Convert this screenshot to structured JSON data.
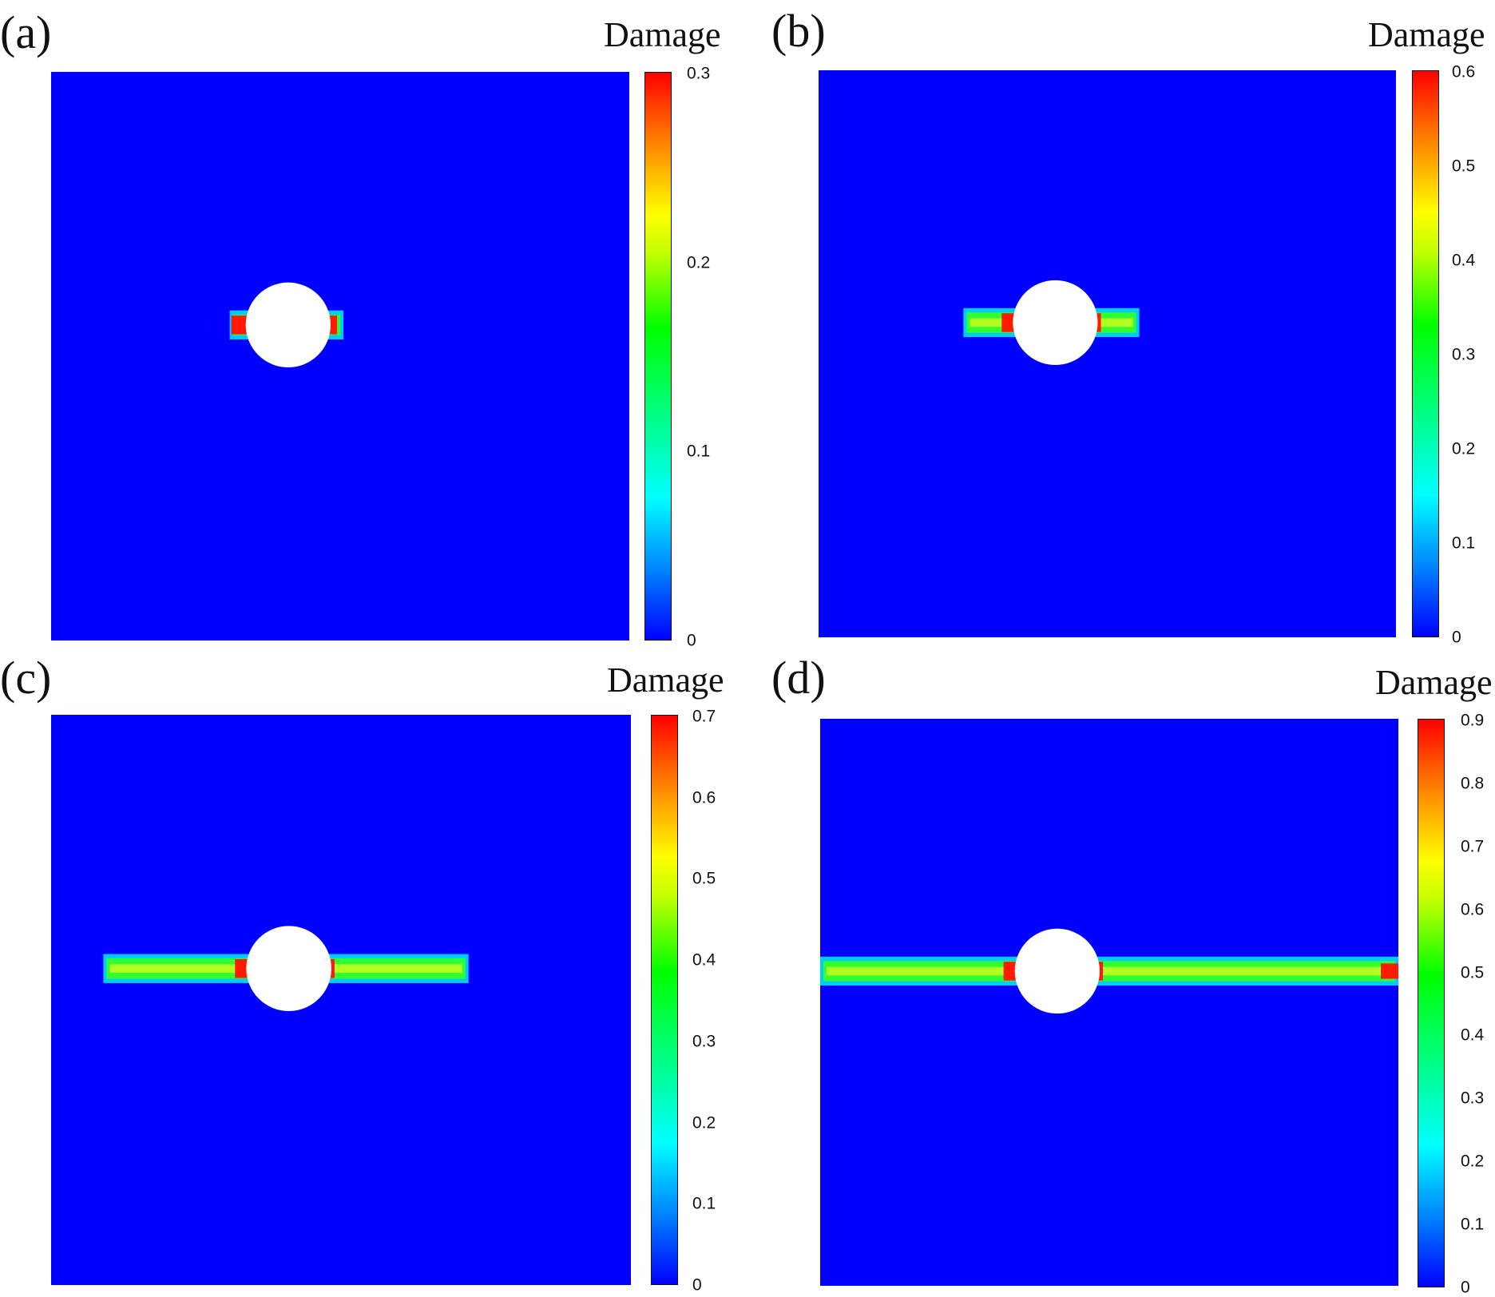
{
  "chart_data": [
    {
      "type": "heatmap",
      "panel_label": "(a)",
      "colorbar_title": "Damage",
      "colorbar_range": [
        0,
        0.3
      ],
      "colorbar_ticks": [
        "0",
        "0.1",
        "0.2",
        "0.3"
      ],
      "colormap": [
        "#0000ff",
        "#00ffff",
        "#00ff00",
        "#ffff00",
        "#ff0000"
      ],
      "crack_extent": "short",
      "max_damage_at_tips": 0.3
    },
    {
      "type": "heatmap",
      "panel_label": "(b)",
      "colorbar_title": "Damage",
      "colorbar_range": [
        0,
        0.6
      ],
      "colorbar_ticks": [
        "0",
        "0.1",
        "0.2",
        "0.3",
        "0.4",
        "0.5",
        "0.6"
      ],
      "colormap": [
        "#0000ff",
        "#00ffff",
        "#00ff00",
        "#ffff00",
        "#ff0000"
      ],
      "crack_extent": "medium",
      "max_damage_at_tips": 0.6
    },
    {
      "type": "heatmap",
      "panel_label": "(c)",
      "colorbar_title": "Damage",
      "colorbar_range": [
        0,
        0.7
      ],
      "colorbar_ticks": [
        "0",
        "0.1",
        "0.2",
        "0.3",
        "0.4",
        "0.5",
        "0.6",
        "0.7"
      ],
      "colormap": [
        "#0000ff",
        "#00ffff",
        "#00ff00",
        "#ffff00",
        "#ff0000"
      ],
      "crack_extent": "long",
      "max_damage_at_tips": 0.7
    },
    {
      "type": "heatmap",
      "panel_label": "(d)",
      "colorbar_title": "Damage",
      "colorbar_range": [
        0,
        0.9
      ],
      "colorbar_ticks": [
        "0",
        "0.1",
        "0.2",
        "0.3",
        "0.4",
        "0.5",
        "0.6",
        "0.7",
        "0.8",
        "0.9"
      ],
      "colormap": [
        "#0000ff",
        "#00ffff",
        "#00ff00",
        "#ffff00",
        "#ff0000"
      ],
      "crack_extent": "full",
      "max_damage_at_tips": 0.9
    }
  ]
}
